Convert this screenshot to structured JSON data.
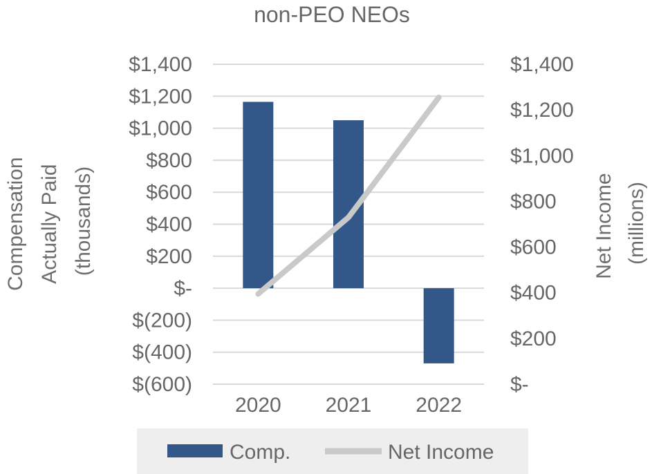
{
  "chart_data": {
    "type": "bar",
    "title": "non-PEO NEOs",
    "categories": [
      "2020",
      "2021",
      "2022"
    ],
    "series": [
      {
        "name": "Comp.",
        "type": "bar",
        "axis": "left",
        "values": [
          1165,
          1050,
          -470
        ],
        "color": "#34578a"
      },
      {
        "name": "Net Income",
        "type": "line",
        "axis": "right",
        "values": [
          395,
          730,
          1255
        ],
        "color": "#c9c9c9"
      }
    ],
    "ylabel_left": [
      "Compensation",
      "Actually Paid",
      "(thousands)"
    ],
    "ylabel_right": [
      "Net Income",
      "(millions)"
    ],
    "ylim_left": [
      -600,
      1400
    ],
    "ylim_right": [
      0,
      1400
    ],
    "yticks_left": [
      "$(600)",
      "$(400)",
      "$(200)",
      "$-",
      "$200",
      "$400",
      "$600",
      "$800",
      "$1,000",
      "$1,200",
      "$1,400"
    ],
    "yticks_right": [
      "$-",
      "$200",
      "$400",
      "$600",
      "$800",
      "$1,000",
      "$1,200",
      "$1,400"
    ],
    "grid": true,
    "legend_position": "bottom",
    "legend_background": "#eeeeef"
  }
}
